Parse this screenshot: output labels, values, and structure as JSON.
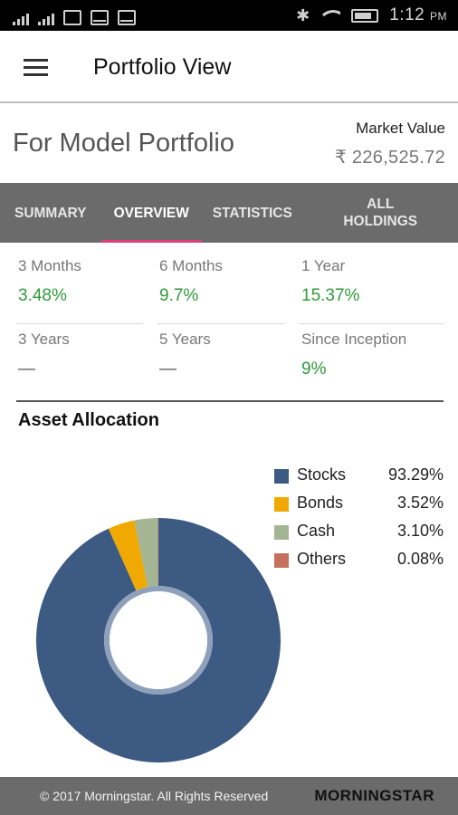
{
  "status_bar": {
    "time": "1:12",
    "ampm": "PM",
    "icons": [
      "signal-icon",
      "signal-icon",
      "image-icon",
      "mail-icon",
      "mail-icon",
      "bluetooth-icon",
      "wifi-icon",
      "battery-icon"
    ]
  },
  "app_bar": {
    "menu_icon": "menu-icon",
    "title": "Portfolio View"
  },
  "portfolio": {
    "name": "For Model Portfolio",
    "market_value_label": "Market Value",
    "market_value": "₹ 226,525.72"
  },
  "tabs": [
    {
      "label": "SUMMARY",
      "active": false
    },
    {
      "label": "OVERVIEW",
      "active": true
    },
    {
      "label": "STATISTICS",
      "active": false
    },
    {
      "label": "ALL HOLDINGS",
      "active": false
    }
  ],
  "returns": [
    {
      "label": "3 Months",
      "value": "3.48%"
    },
    {
      "label": "6 Months",
      "value": "9.7%"
    },
    {
      "label": "1 Year",
      "value": "15.37%"
    },
    {
      "label": "3 Years",
      "value": "—"
    },
    {
      "label": "5 Years",
      "value": "—"
    },
    {
      "label": "Since Inception",
      "value": "9%"
    }
  ],
  "asset_allocation": {
    "title": "Asset Allocation"
  },
  "chart_data": {
    "type": "pie",
    "donut": true,
    "title": "Asset Allocation",
    "categories": [
      "Stocks",
      "Bonds",
      "Cash",
      "Others"
    ],
    "values": [
      93.29,
      3.52,
      3.1,
      0.08
    ],
    "labels": [
      "93.29%",
      "3.52%",
      "3.10%",
      "0.08%"
    ],
    "colors": [
      "#3d5a83",
      "#f0a900",
      "#a4b593",
      "#c5705d"
    ],
    "legend": "top-right"
  },
  "footer": {
    "copyright": "© 2017 Morningstar. All Rights Reserved",
    "brand": "MORNINGSTAR"
  }
}
